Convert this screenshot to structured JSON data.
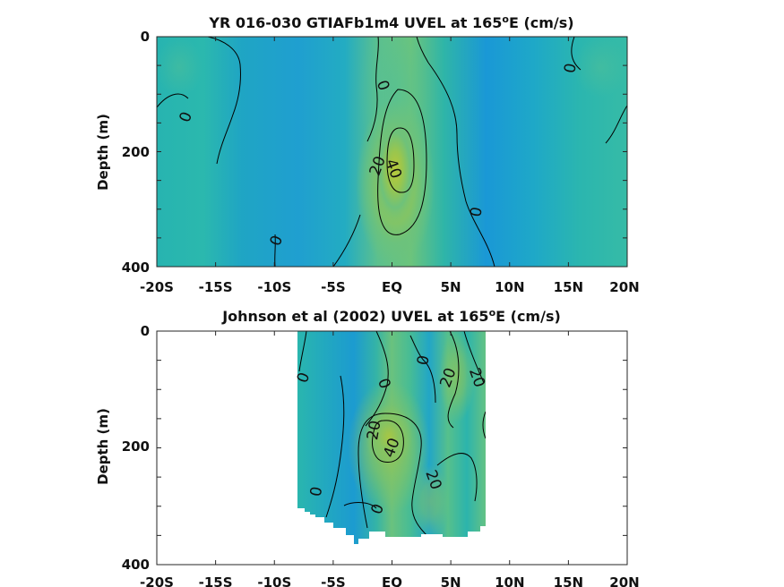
{
  "chart_data": [
    {
      "type": "heatmap",
      "title_main": "YR 016-030 GTIAFb1m4 UVEL at 165",
      "title_sup": "o",
      "title_tail": "E (cm/s)",
      "ylabel": "Depth (m)",
      "xlim": [
        -20,
        20
      ],
      "ylim": [
        0,
        400
      ],
      "x_ticks": [
        "-20S",
        "-15S",
        "-10S",
        "-5S",
        "EQ",
        "5N",
        "10N",
        "15N",
        "20N"
      ],
      "y_ticks": [
        "0",
        "200",
        "400"
      ],
      "data_extent": {
        "lat": [
          -20,
          20
        ],
        "depth": [
          0,
          400
        ]
      },
      "contour_levels": [
        0,
        20,
        40
      ],
      "contour_labels": [
        {
          "text": "0",
          "lat": -17.5,
          "depth": 140
        },
        {
          "text": "0",
          "lat": -0.8,
          "depth": 85
        },
        {
          "text": "0",
          "lat": 15.2,
          "depth": 55
        },
        {
          "text": "20",
          "lat": -1.2,
          "depth": 225
        },
        {
          "text": "40",
          "lat": 0.1,
          "depth": 230
        },
        {
          "text": "0",
          "lat": 7.2,
          "depth": 305
        },
        {
          "text": "0",
          "lat": -9.8,
          "depth": 355
        }
      ],
      "features": [
        {
          "kind": "core",
          "lat": 0.5,
          "depth": 210,
          "u": 45
        }
      ]
    },
    {
      "type": "heatmap",
      "title_main": "Johnson et al (2002) UVEL at 165",
      "title_sup": "o",
      "title_tail": "E (cm/s)",
      "ylabel": "Depth (m)",
      "xlim": [
        -20,
        20
      ],
      "ylim": [
        0,
        400
      ],
      "x_ticks": [
        "-20S",
        "-15S",
        "-10S",
        "-5S",
        "EQ",
        "5N",
        "10N",
        "15N",
        "20N"
      ],
      "y_ticks": [
        "0",
        "200",
        "400"
      ],
      "data_extent": {
        "lat": [
          -8,
          8
        ],
        "depth": [
          0,
          360
        ]
      },
      "contour_levels": [
        0,
        20,
        40
      ],
      "contour_labels": [
        {
          "text": "0",
          "lat": -7.5,
          "depth": 80
        },
        {
          "text": "0",
          "lat": -0.7,
          "depth": 90
        },
        {
          "text": "0",
          "lat": 2.7,
          "depth": 50
        },
        {
          "text": "20",
          "lat": 4.8,
          "depth": 80
        },
        {
          "text": "20",
          "lat": 7.2,
          "depth": 80
        },
        {
          "text": "20",
          "lat": -1.5,
          "depth": 170
        },
        {
          "text": "40",
          "lat": 0,
          "depth": 200
        },
        {
          "text": "20",
          "lat": 3.5,
          "depth": 255
        },
        {
          "text": "0",
          "lat": -6.4,
          "depth": 275
        },
        {
          "text": "0",
          "lat": -1.2,
          "depth": 305
        }
      ],
      "features": [
        {
          "kind": "core",
          "lat": 0,
          "depth": 185,
          "u": 42
        }
      ]
    }
  ]
}
